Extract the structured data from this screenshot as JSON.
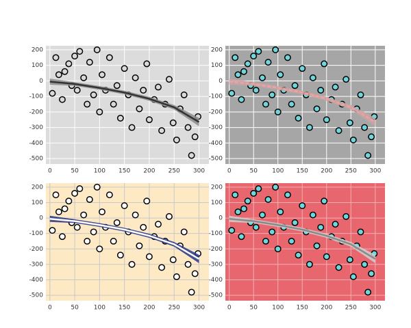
{
  "chart_data": [
    {
      "type": "scatter",
      "background": "#dcdcdc",
      "grid_color": "#ffffff",
      "point_color": "#d9d9d9",
      "x": [
        5,
        12,
        18,
        25,
        30,
        38,
        44,
        50,
        55,
        60,
        68,
        75,
        80,
        88,
        95,
        100,
        105,
        112,
        120,
        128,
        135,
        142,
        150,
        158,
        165,
        172,
        180,
        188,
        195,
        200,
        210,
        218,
        225,
        232,
        240,
        248,
        255,
        262,
        270,
        278,
        285,
        292,
        298
      ],
      "y": [
        -80,
        150,
        40,
        -120,
        60,
        110,
        -30,
        160,
        -60,
        190,
        20,
        -150,
        120,
        -90,
        200,
        -200,
        40,
        -60,
        150,
        -150,
        -30,
        -240,
        80,
        -90,
        -300,
        20,
        -180,
        -60,
        110,
        -250,
        -120,
        -40,
        -320,
        -150,
        10,
        -270,
        -380,
        -180,
        -90,
        -300,
        -480,
        -360,
        -230
      ],
      "smooth": {
        "x": [
          0,
          50,
          100,
          150,
          200,
          250,
          300
        ],
        "y": [
          -5,
          -20,
          -45,
          -75,
          -115,
          -170,
          -265
        ],
        "lower": [
          -25,
          -32,
          -57,
          -87,
          -128,
          -185,
          -292
        ],
        "upper": [
          15,
          -8,
          -33,
          -63,
          -102,
          -155,
          -238
        ],
        "line_color": "#333333",
        "band_color": "#8c8c8c",
        "dashed": false
      },
      "xlim": [
        -8,
        320
      ],
      "ylim": [
        -535,
        226
      ],
      "xticks": [
        0,
        50,
        100,
        150,
        200,
        250,
        300
      ],
      "yticks": [
        -500,
        -400,
        -300,
        -200,
        -100,
        0,
        100,
        200
      ]
    },
    {
      "type": "scatter",
      "background": "#a6a6a6",
      "grid_color": "#ffffff",
      "point_color": "#6fd6dc",
      "x": [
        5,
        12,
        18,
        25,
        30,
        38,
        44,
        50,
        55,
        60,
        68,
        75,
        80,
        88,
        95,
        100,
        105,
        112,
        120,
        128,
        135,
        142,
        150,
        158,
        165,
        172,
        180,
        188,
        195,
        200,
        210,
        218,
        225,
        232,
        240,
        248,
        255,
        262,
        270,
        278,
        285,
        292,
        298
      ],
      "y": [
        -80,
        150,
        40,
        -120,
        60,
        110,
        -30,
        160,
        -60,
        190,
        20,
        -150,
        120,
        -90,
        200,
        -200,
        40,
        -60,
        150,
        -150,
        -30,
        -240,
        80,
        -90,
        -300,
        20,
        -180,
        -60,
        110,
        -250,
        -120,
        -40,
        -320,
        -150,
        10,
        -270,
        -380,
        -180,
        -90,
        -300,
        -480,
        -360,
        -230
      ],
      "smooth": {
        "x": [
          0,
          50,
          100,
          150,
          200,
          250,
          300
        ],
        "y": [
          -5,
          -20,
          -45,
          -75,
          -115,
          -170,
          -265
        ],
        "lower": [
          -25,
          -32,
          -57,
          -87,
          -128,
          -185,
          -292
        ],
        "upper": [
          15,
          -8,
          -33,
          -63,
          -102,
          -155,
          -238
        ],
        "line_color": "#f4a0a0",
        "band_color": "#c9a3a3",
        "dashed": true
      },
      "xlim": [
        -8,
        320
      ],
      "ylim": [
        -535,
        226
      ],
      "xticks": [
        0,
        50,
        100,
        150,
        200,
        250,
        300
      ],
      "yticks": [
        -500,
        -400,
        -300,
        -200,
        -100,
        0,
        100,
        200
      ]
    },
    {
      "type": "scatter",
      "background": "#fde9c4",
      "grid_color": "#c8c8c8",
      "point_color": "#ffffff",
      "x": [
        5,
        12,
        18,
        25,
        30,
        38,
        44,
        50,
        55,
        60,
        68,
        75,
        80,
        88,
        95,
        100,
        105,
        112,
        120,
        128,
        135,
        142,
        150,
        158,
        165,
        172,
        180,
        188,
        195,
        200,
        210,
        218,
        225,
        232,
        240,
        248,
        255,
        262,
        270,
        278,
        285,
        292,
        298
      ],
      "y": [
        -80,
        150,
        40,
        -120,
        60,
        110,
        -30,
        160,
        -60,
        190,
        20,
        -150,
        120,
        -90,
        200,
        -200,
        40,
        -60,
        150,
        -150,
        -30,
        -240,
        80,
        -90,
        -300,
        20,
        -180,
        -60,
        110,
        -250,
        -120,
        -40,
        -320,
        -150,
        10,
        -270,
        -380,
        -180,
        -90,
        -300,
        -480,
        -360,
        -230
      ],
      "smooth": {
        "x": [
          0,
          50,
          100,
          150,
          200,
          250,
          300
        ],
        "y": [
          -5,
          -20,
          -45,
          -75,
          -115,
          -170,
          -265
        ],
        "lower": [
          -25,
          -32,
          -57,
          -87,
          -128,
          -185,
          -292
        ],
        "upper": [
          15,
          -8,
          -33,
          -63,
          -102,
          -155,
          -238
        ],
        "line_color": "#ffffff",
        "band_color": "#27358a",
        "dashed": false
      },
      "xlim": [
        -8,
        320
      ],
      "ylim": [
        -535,
        226
      ],
      "xticks": [
        0,
        50,
        100,
        150,
        200,
        250,
        300
      ],
      "yticks": [
        -500,
        -400,
        -300,
        -200,
        -100,
        0,
        100,
        200
      ]
    },
    {
      "type": "scatter",
      "background": "#e8666e",
      "grid_color": "#f3b0b4",
      "point_color": "#6fd6dc",
      "x": [
        5,
        12,
        18,
        25,
        30,
        38,
        44,
        50,
        55,
        60,
        68,
        75,
        80,
        88,
        95,
        100,
        105,
        112,
        120,
        128,
        135,
        142,
        150,
        158,
        165,
        172,
        180,
        188,
        195,
        200,
        210,
        218,
        225,
        232,
        240,
        248,
        255,
        262,
        270,
        278,
        285,
        292,
        298
      ],
      "y": [
        -80,
        150,
        40,
        -120,
        60,
        110,
        -30,
        160,
        -60,
        190,
        20,
        -150,
        120,
        -90,
        200,
        -200,
        40,
        -60,
        150,
        -150,
        -30,
        -240,
        80,
        -90,
        -300,
        20,
        -180,
        -60,
        110,
        -250,
        -120,
        -40,
        -320,
        -150,
        10,
        -270,
        -380,
        -180,
        -90,
        -300,
        -480,
        -360,
        -230
      ],
      "smooth": {
        "x": [
          0,
          50,
          100,
          150,
          200,
          250,
          300
        ],
        "y": [
          -5,
          -20,
          -45,
          -75,
          -115,
          -170,
          -265
        ],
        "lower": [
          -25,
          -32,
          -57,
          -87,
          -128,
          -185,
          -292
        ],
        "upper": [
          15,
          -8,
          -33,
          -63,
          -102,
          -155,
          -238
        ],
        "line_color": "#8a8a8a",
        "band_color": "#d0d0d0",
        "dashed": false
      },
      "xlim": [
        -8,
        320
      ],
      "ylim": [
        -535,
        226
      ],
      "xticks": [
        0,
        50,
        100,
        150,
        200,
        250,
        300
      ],
      "yticks": [
        -500,
        -400,
        -300,
        -200,
        -100,
        0,
        100,
        200
      ]
    }
  ]
}
